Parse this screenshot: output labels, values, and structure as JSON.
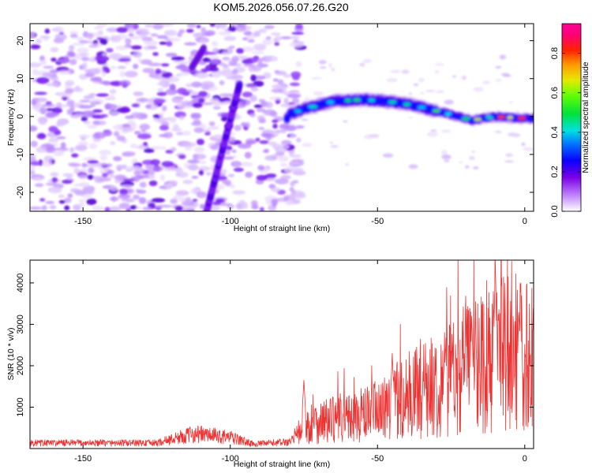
{
  "title": "KOM5.2026.056.07.26.G20",
  "chart_data": [
    {
      "type": "heatmap",
      "xlabel": "Height of straight line (km)",
      "ylabel": "Frequency (Hz)",
      "xlim": [
        -168,
        3
      ],
      "ylim": [
        -25,
        24.5
      ],
      "xticks": [
        -150,
        -100,
        -50,
        0
      ],
      "yticks": [
        -20,
        -10,
        0,
        10,
        20
      ],
      "colorbar": {
        "label": "Normalized spectral amplitude",
        "range": [
          0,
          0.95
        ],
        "ticks": [
          0.0,
          0.2,
          0.4,
          0.6,
          0.8
        ],
        "tick_labels": [
          "0.0",
          "0.2",
          "0.4",
          "0.6",
          "0.8"
        ]
      },
      "ridge": [
        {
          "x": -80,
          "y": 0.5
        },
        {
          "x": -75,
          "y": 2.0
        },
        {
          "x": -65,
          "y": 4.0
        },
        {
          "x": -55,
          "y": 4.5
        },
        {
          "x": -45,
          "y": 3.8
        },
        {
          "x": -38,
          "y": 3.0
        },
        {
          "x": -30,
          "y": 1.5
        },
        {
          "x": -25,
          "y": 0.5
        },
        {
          "x": -18,
          "y": -1.0
        },
        {
          "x": -10,
          "y": 0.0
        },
        {
          "x": 0,
          "y": -0.5
        }
      ],
      "diagonal_streak": {
        "start": {
          "x": -108,
          "y": -25
        },
        "end": {
          "x": -97,
          "y": 8
        }
      }
    },
    {
      "type": "line",
      "xlabel": "Height of straight line (km)",
      "ylabel": "SNR (10 * v/v)",
      "xlim": [
        -168,
        3
      ],
      "ylim": [
        0,
        4550
      ],
      "xticks": [
        -150,
        -100,
        -50,
        0
      ],
      "yticks": [
        1000,
        2000,
        3000,
        4000
      ],
      "color": "#ee3333",
      "envelope": [
        {
          "x": -168,
          "y": 150
        },
        {
          "x": -125,
          "y": 150
        },
        {
          "x": -112,
          "y": 400
        },
        {
          "x": -100,
          "y": 300
        },
        {
          "x": -92,
          "y": 120
        },
        {
          "x": -80,
          "y": 180
        },
        {
          "x": -72,
          "y": 700
        },
        {
          "x": -60,
          "y": 800
        },
        {
          "x": -50,
          "y": 1000
        },
        {
          "x": -40,
          "y": 1400
        },
        {
          "x": -30,
          "y": 1700
        },
        {
          "x": -20,
          "y": 2200
        },
        {
          "x": -12,
          "y": 2500
        },
        {
          "x": -5,
          "y": 2600
        },
        {
          "x": 3,
          "y": 2500
        }
      ],
      "spikes": [
        {
          "x": -75,
          "y": 1650
        },
        {
          "x": -45,
          "y": 2300
        },
        {
          "x": -27,
          "y": 2300
        },
        {
          "x": -18,
          "y": 3200
        },
        {
          "x": -10,
          "y": 4550
        },
        {
          "x": -2,
          "y": 3400
        }
      ]
    }
  ]
}
